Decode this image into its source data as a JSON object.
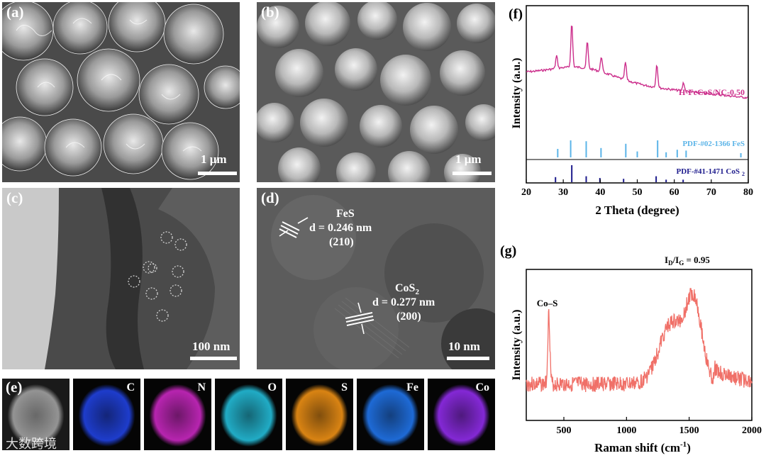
{
  "panels": {
    "a": {
      "label": "(a)",
      "scale": "1 μm"
    },
    "b": {
      "label": "(b)",
      "scale": "1 μm"
    },
    "c": {
      "label": "(c)",
      "scale": "100 nm"
    },
    "d": {
      "label": "(d)",
      "scale": "10 nm",
      "feS": {
        "name": "FeS",
        "d": "d = 0.246 nm",
        "plane": "(210)"
      },
      "coS2": {
        "name": "CoS",
        "sub": "2",
        "d": "d = 0.277 nm",
        "plane": "(200)"
      }
    },
    "e": {
      "label": "(e)",
      "maps": [
        {
          "element": "",
          "color": "#9a9a9a"
        },
        {
          "element": "C",
          "color": "#1f3fd6"
        },
        {
          "element": "N",
          "color": "#c026b8"
        },
        {
          "element": "O",
          "color": "#22b4cf"
        },
        {
          "element": "S",
          "color": "#e48a14"
        },
        {
          "element": "Fe",
          "color": "#1f6fe0"
        },
        {
          "element": "Co",
          "color": "#8a2ae0"
        }
      ]
    },
    "f": {
      "label": "(f)"
    },
    "g": {
      "label": "(g)"
    }
  },
  "watermark": "大数跨境",
  "chart_data": [
    {
      "panel": "f",
      "type": "line",
      "xlabel": "2 Theta (degree)",
      "ylabel": "Intensity (a.u.)",
      "xlim": [
        20,
        80
      ],
      "xticks": [
        "20",
        "30",
        "40",
        "50",
        "60",
        "70",
        "80"
      ],
      "series": [
        {
          "name": "H-FeCoS/NC-0.50",
          "color": "#cc2f8c",
          "peaks": [
            28.2,
            32.3,
            36.5,
            40.3,
            46.8,
            55.3,
            62.5
          ]
        }
      ],
      "references": [
        {
          "name": "PDF-#02-1366 FeS",
          "color": "#5bb4e8",
          "lines": [
            [
              28.5,
              0.5
            ],
            [
              32.0,
              1.0
            ],
            [
              36.2,
              0.95
            ],
            [
              40.2,
              0.55
            ],
            [
              46.9,
              0.8
            ],
            [
              50.0,
              0.35
            ],
            [
              55.5,
              1.0
            ],
            [
              57.8,
              0.3
            ],
            [
              60.8,
              0.45
            ],
            [
              63.2,
              0.4
            ],
            [
              78.0,
              0.25
            ]
          ]
        },
        {
          "name": "PDF-#41-1471 CoS",
          "name_sub": "2",
          "color": "#1c1a8c",
          "lines": [
            [
              27.9,
              0.3
            ],
            [
              32.3,
              1.0
            ],
            [
              36.2,
              0.35
            ],
            [
              39.9,
              0.25
            ],
            [
              46.3,
              0.2
            ],
            [
              55.1,
              0.35
            ],
            [
              57.8,
              0.15
            ],
            [
              62.4,
              0.15
            ]
          ]
        }
      ]
    },
    {
      "panel": "g",
      "type": "line",
      "xlabel": "Raman shift (cm",
      "xlabel_sup": "-1",
      "ylabel": "Intensity (a.u.)",
      "xlim": [
        200,
        2000
      ],
      "xticks": [
        "500",
        "1000",
        "1500",
        "2000"
      ],
      "series": [
        {
          "name": "",
          "color": "#f07068",
          "peaks": [
            {
              "x": 380,
              "label": "Co–S"
            },
            {
              "x": 1350,
              "label": ""
            },
            {
              "x": 1580,
              "label": ""
            }
          ]
        }
      ],
      "annotation": {
        "I": "I",
        "D": "D",
        "G": "G",
        "text": "= 0.95",
        "value": 0.95
      }
    }
  ]
}
